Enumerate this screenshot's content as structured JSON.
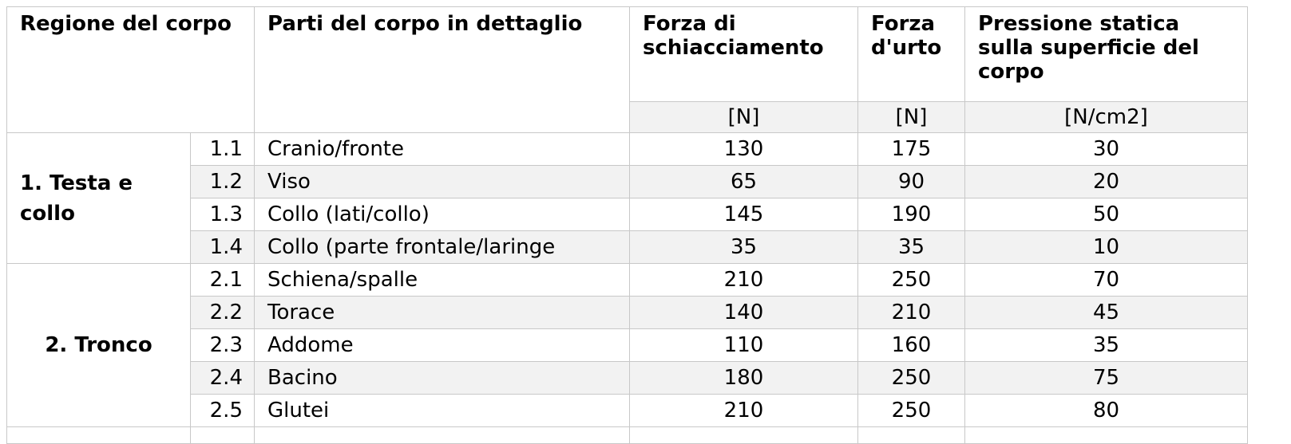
{
  "headers": {
    "region": "Regione del corpo",
    "parts": "Parti del corpo in dettaglio",
    "crush": "Forza di schiacciamento",
    "impact": "Forza d'urto",
    "pressure": "Pressione statica sulla superficie del corpo"
  },
  "units": {
    "crush": "[N]",
    "impact": "[N]",
    "pressure": "[N/cm2]"
  },
  "regions": [
    {
      "name": "1. Testa e collo",
      "rows": [
        {
          "id": "1.1",
          "part": "Cranio/fronte",
          "crush": "130",
          "impact": "175",
          "pressure": "30"
        },
        {
          "id": "1.2",
          "part": "Viso",
          "crush": "65",
          "impact": "90",
          "pressure": "20"
        },
        {
          "id": "1.3",
          "part": "Collo (lati/collo)",
          "crush": "145",
          "impact": "190",
          "pressure": "50"
        },
        {
          "id": "1.4",
          "part": "Collo (parte frontale/laringe",
          "crush": "35",
          "impact": "35",
          "pressure": "10"
        }
      ]
    },
    {
      "name": "2. Tronco",
      "rows": [
        {
          "id": "2.1",
          "part": "Schiena/spalle",
          "crush": "210",
          "impact": "250",
          "pressure": "70"
        },
        {
          "id": "2.2",
          "part": "Torace",
          "crush": "140",
          "impact": "210",
          "pressure": "45"
        },
        {
          "id": "2.3",
          "part": "Addome",
          "crush": "110",
          "impact": "160",
          "pressure": "35"
        },
        {
          "id": "2.4",
          "part": "Bacino",
          "crush": "180",
          "impact": "250",
          "pressure": "75"
        },
        {
          "id": "2.5",
          "part": "Glutei",
          "crush": "210",
          "impact": "250",
          "pressure": "80"
        }
      ]
    }
  ]
}
